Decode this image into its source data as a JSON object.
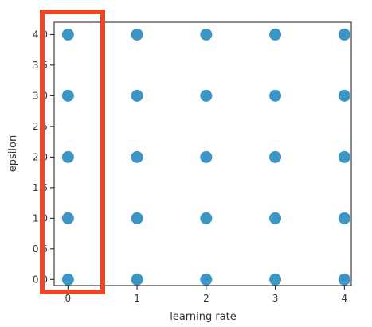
{
  "chart_data": {
    "type": "scatter",
    "xlabel": "learning rate",
    "ylabel": "epsilon",
    "xlim": [
      -0.2,
      4.1
    ],
    "ylim": [
      -0.1,
      4.2
    ],
    "x_ticks": [
      "0",
      "1",
      "2",
      "3",
      "4"
    ],
    "y_ticks": [
      "0.0",
      "0.5",
      "1.0",
      "1.5",
      "2.0",
      "2.5",
      "3.0",
      "3.5",
      "4.0"
    ],
    "grid": false,
    "marker_color": "#3b96c6",
    "points": [
      {
        "x": 0,
        "y": 0
      },
      {
        "x": 1,
        "y": 0
      },
      {
        "x": 2,
        "y": 0
      },
      {
        "x": 3,
        "y": 0
      },
      {
        "x": 4,
        "y": 0
      },
      {
        "x": 0,
        "y": 1
      },
      {
        "x": 1,
        "y": 1
      },
      {
        "x": 2,
        "y": 1
      },
      {
        "x": 3,
        "y": 1
      },
      {
        "x": 4,
        "y": 1
      },
      {
        "x": 0,
        "y": 2
      },
      {
        "x": 1,
        "y": 2
      },
      {
        "x": 2,
        "y": 2
      },
      {
        "x": 3,
        "y": 2
      },
      {
        "x": 4,
        "y": 2
      },
      {
        "x": 0,
        "y": 3
      },
      {
        "x": 1,
        "y": 3
      },
      {
        "x": 2,
        "y": 3
      },
      {
        "x": 3,
        "y": 3
      },
      {
        "x": 4,
        "y": 3
      },
      {
        "x": 0,
        "y": 4
      },
      {
        "x": 1,
        "y": 4
      },
      {
        "x": 2,
        "y": 4
      },
      {
        "x": 3,
        "y": 4
      },
      {
        "x": 4,
        "y": 4
      }
    ]
  },
  "highlight": {
    "color": "#e8472b",
    "target": "column x=0"
  }
}
